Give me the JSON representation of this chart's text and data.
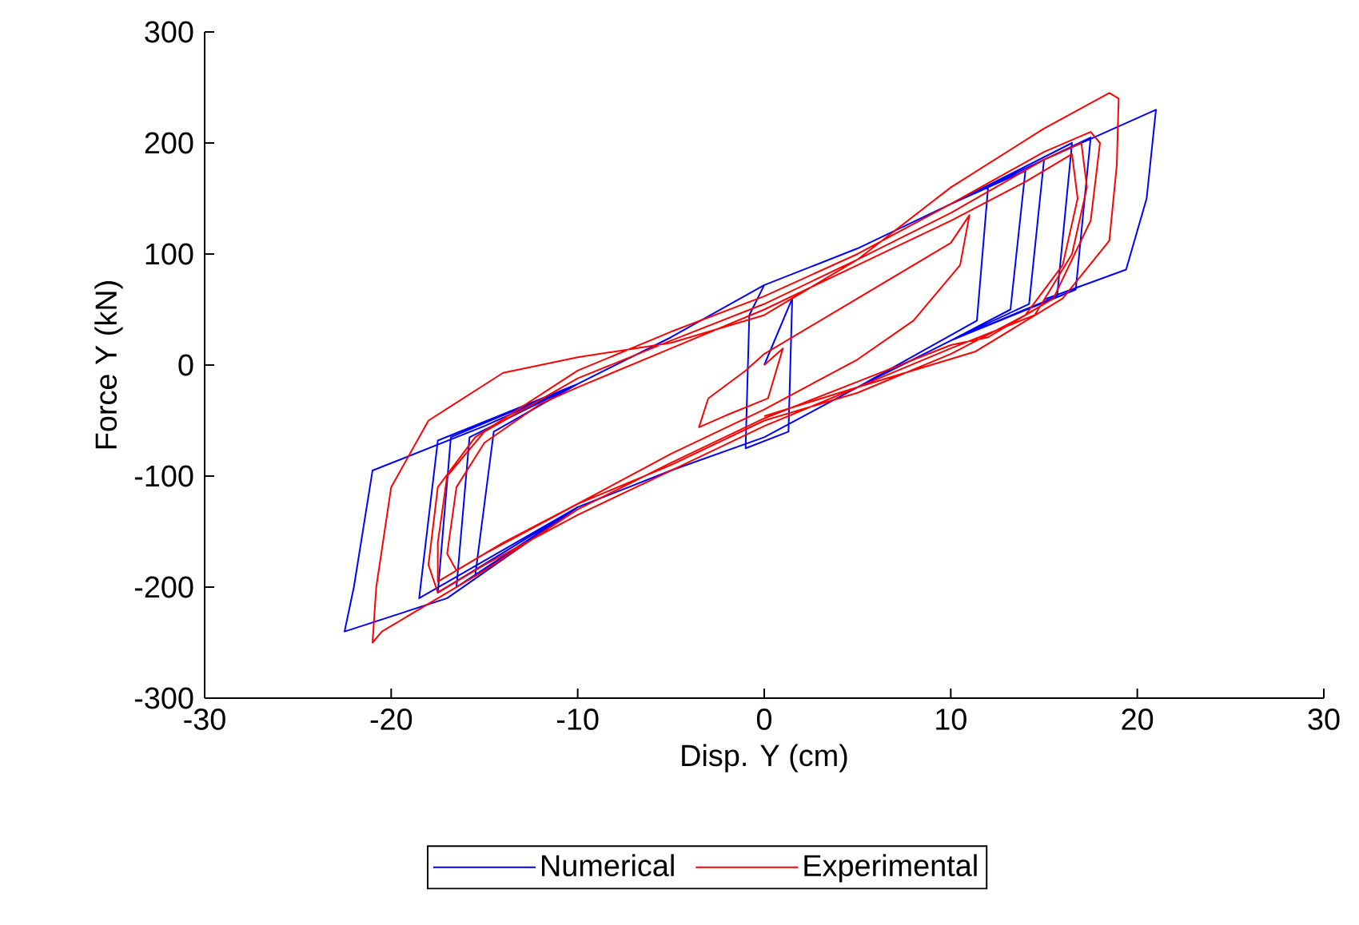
{
  "chart_data": {
    "type": "line",
    "xlabel": "Disp. Y (cm)",
    "ylabel": "Force Y (kN)",
    "xlim": [
      -30,
      30
    ],
    "ylim": [
      -300,
      300
    ],
    "xticks": [
      -30,
      -20,
      -10,
      0,
      10,
      20,
      30
    ],
    "yticks": [
      -300,
      -200,
      -100,
      0,
      100,
      200,
      300
    ],
    "grid": false,
    "legend": "bottom",
    "line_style": "solid",
    "marker": "none",
    "series": [
      {
        "name": "Numerical",
        "color": "#0000ff",
        "x": [
          0,
          1.5,
          1.3,
          -1,
          -0.8,
          0,
          5,
          10,
          12,
          11.4,
          5,
          0,
          -5,
          -10,
          -15.5,
          -14.5,
          -10,
          -5,
          0,
          5,
          10,
          14,
          13.2,
          10,
          5,
          0,
          -5,
          -10,
          -16.5,
          -15.8,
          -10,
          -5,
          0,
          5,
          10,
          15,
          14.2,
          10,
          5,
          0,
          -5,
          -10,
          -17.5,
          -16.8,
          -10,
          -5,
          0,
          5,
          10,
          16.5,
          15.7,
          10,
          5,
          0,
          -5,
          -10,
          -18.5,
          -17.5,
          -10,
          -5,
          0,
          5,
          10,
          17.5,
          16.7,
          10,
          5,
          0,
          -5,
          -10,
          -17,
          -22.5,
          -22,
          -21,
          -15,
          -10,
          -5,
          0,
          5,
          10,
          15,
          21,
          20.5,
          19.4,
          15
        ],
        "values": [
          0,
          60,
          -60,
          -75,
          45,
          72,
          105,
          145,
          160,
          40,
          -20,
          -65,
          -95,
          -128,
          -190,
          -60,
          -17,
          25,
          72,
          105,
          145,
          175,
          50,
          22,
          -20,
          -65,
          -95,
          -128,
          -200,
          -65,
          -17,
          25,
          72,
          105,
          145,
          185,
          55,
          22,
          -20,
          -65,
          -95,
          -128,
          -205,
          -65,
          -17,
          25,
          72,
          105,
          145,
          200,
          62,
          22,
          -20,
          -65,
          -95,
          -128,
          -210,
          -68,
          -17,
          25,
          72,
          105,
          145,
          205,
          68,
          22,
          -20,
          -65,
          -95,
          -128,
          -210,
          -240,
          -200,
          -95,
          -55,
          -17,
          25,
          72,
          105,
          145,
          185,
          230,
          150,
          86,
          59
        ]
      },
      {
        "name": "Experimental",
        "color": "#ff0000",
        "x": [
          0,
          1,
          0.2,
          -2,
          -3.5,
          -3,
          -1,
          0,
          5,
          10,
          11,
          10.5,
          8,
          5,
          0,
          -5,
          -10,
          -14,
          -16.5,
          -17,
          -16.5,
          -15,
          -12,
          -10,
          -5,
          0,
          5,
          10,
          14,
          16.5,
          16.8,
          16,
          14,
          10,
          5,
          0,
          -5,
          -10,
          -15,
          -17.5,
          -17.5,
          -17,
          -15,
          -10,
          -5,
          0,
          5,
          10,
          15,
          17,
          17.3,
          16.5,
          14.5,
          10,
          5,
          0,
          -5,
          -10,
          -15,
          -17.5,
          -18,
          -17.5,
          -15.5,
          -10,
          -5,
          0,
          5,
          10,
          15,
          17.5,
          18,
          17.5,
          15.5,
          12,
          10,
          5,
          0,
          -5,
          -10,
          -15,
          -18,
          -20.5,
          -21,
          -20.8,
          -20,
          -18,
          -14,
          -10,
          -5,
          0,
          5,
          10,
          15,
          18.5,
          19,
          18.9,
          18.5,
          16,
          11.3,
          5,
          0
        ],
        "values": [
          0,
          15,
          -30,
          -45,
          -56,
          -30,
          -5,
          10,
          60,
          110,
          135,
          90,
          40,
          5,
          -40,
          -80,
          -125,
          -160,
          -185,
          -170,
          -110,
          -70,
          -35,
          -20,
          15,
          50,
          90,
          130,
          165,
          190,
          150,
          90,
          45,
          10,
          -25,
          -50,
          -90,
          -125,
          -170,
          -195,
          -160,
          -100,
          -60,
          -12,
          22,
          55,
          95,
          137,
          185,
          200,
          160,
          100,
          45,
          15,
          -20,
          -55,
          -95,
          -135,
          -180,
          -205,
          -180,
          -110,
          -65,
          -5,
          30,
          62,
          100,
          145,
          192,
          210,
          200,
          130,
          60,
          25,
          18,
          -15,
          -48,
          -88,
          -130,
          -185,
          -215,
          -240,
          -250,
          -200,
          -110,
          -50,
          -7,
          7,
          20,
          45,
          95,
          160,
          213,
          245,
          240,
          180,
          112,
          60,
          12,
          -20,
          -46
        ]
      }
    ]
  }
}
